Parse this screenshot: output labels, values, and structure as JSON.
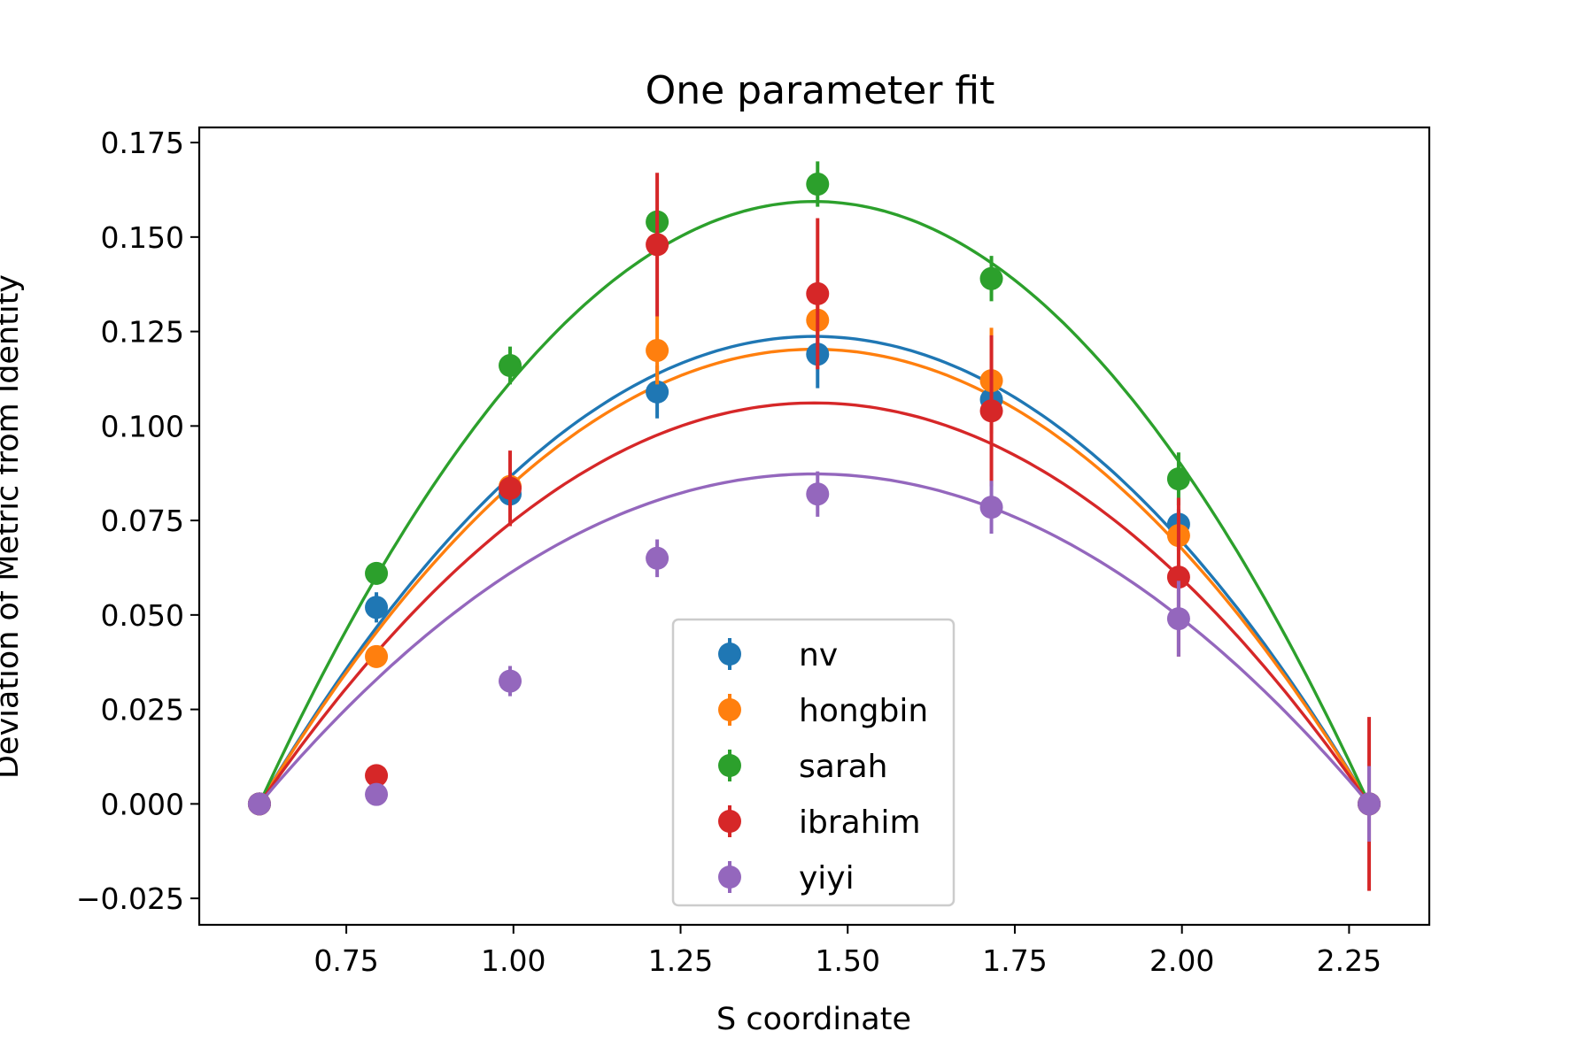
{
  "chart_data": {
    "type": "scatter",
    "title": "One parameter fit",
    "xlabel": "S coordinate",
    "ylabel": "Deviation of Metric from Identity",
    "xlim": [
      0.53,
      2.37
    ],
    "ylim": [
      -0.032,
      0.179
    ],
    "xticks": [
      0.75,
      1.0,
      1.25,
      1.5,
      1.75,
      2.0,
      2.25
    ],
    "xtick_labels": [
      "0.75",
      "1.00",
      "1.25",
      "1.50",
      "1.75",
      "2.00",
      "2.25"
    ],
    "yticks": [
      -0.025,
      0.0,
      0.025,
      0.05,
      0.075,
      0.1,
      0.125,
      0.15,
      0.175
    ],
    "ytick_labels": [
      "−0.025",
      "0.000",
      "0.025",
      "0.050",
      "0.075",
      "0.100",
      "0.125",
      "0.150",
      "0.175"
    ],
    "x": [
      0.62,
      0.795,
      0.995,
      1.215,
      1.455,
      1.715,
      1.995,
      2.28
    ],
    "fit_zeros": [
      0.62,
      2.28
    ],
    "grid": false,
    "legend_position": "lower center",
    "series": [
      {
        "name": "nv",
        "color": "#1f77b4",
        "y": [
          0.0,
          0.052,
          0.082,
          0.109,
          0.119,
          0.107,
          0.074,
          0.0
        ],
        "yerr": [
          0.0,
          0.004,
          0.003,
          0.007,
          0.009,
          0.004,
          0.004,
          0.001
        ],
        "fit_peak": 0.1237
      },
      {
        "name": "hongbin",
        "color": "#ff7f0e",
        "y": [
          0.0,
          0.039,
          0.084,
          0.12,
          0.128,
          0.112,
          0.071,
          0.0
        ],
        "yerr": [
          0.0,
          0.003,
          0.003,
          0.009,
          0.004,
          0.014,
          0.004,
          0.001
        ],
        "fit_peak": 0.1203
      },
      {
        "name": "sarah",
        "color": "#2ca02c",
        "y": [
          0.0,
          0.061,
          0.116,
          0.154,
          0.164,
          0.139,
          0.086,
          0.0
        ],
        "yerr": [
          0.0,
          0.003,
          0.005,
          0.003,
          0.006,
          0.006,
          0.007,
          0.001
        ],
        "fit_peak": 0.1594
      },
      {
        "name": "ibrahim",
        "color": "#d62728",
        "y": [
          0.0,
          0.0075,
          0.0835,
          0.148,
          0.135,
          0.104,
          0.06,
          0.0
        ],
        "yerr": [
          0.0,
          0.002,
          0.01,
          0.019,
          0.02,
          0.02,
          0.021,
          0.023
        ],
        "fit_peak": 0.1061
      },
      {
        "name": "yiyi",
        "color": "#9467bd",
        "y": [
          0.0,
          0.0025,
          0.0325,
          0.065,
          0.082,
          0.0785,
          0.049,
          0.0
        ],
        "yerr": [
          0.0,
          0.002,
          0.004,
          0.005,
          0.006,
          0.007,
          0.01,
          0.01
        ],
        "fit_peak": 0.0873
      }
    ]
  }
}
